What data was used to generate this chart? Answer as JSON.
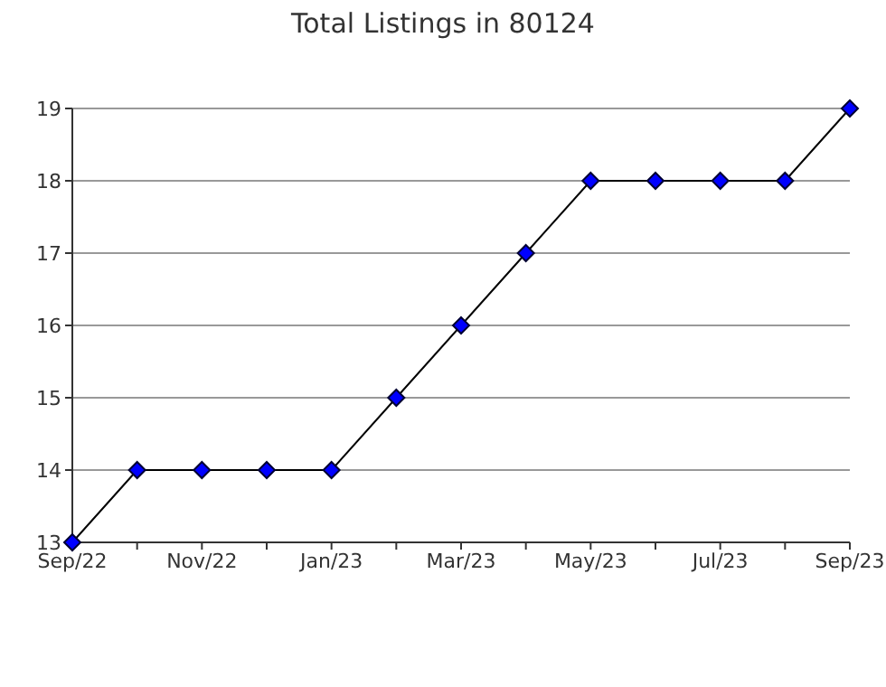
{
  "chart_data": {
    "type": "line",
    "title": "Total Listings in 80124",
    "categories": [
      "Sep/22",
      null,
      "Nov/22",
      null,
      "Jan/23",
      null,
      "Mar/23",
      null,
      "May/23",
      null,
      "Jul/23",
      null,
      "Sep/23"
    ],
    "series": [
      {
        "color": "#0000ff",
        "values": [
          13,
          14,
          14,
          14,
          14,
          15,
          16,
          17,
          18,
          18,
          18,
          18,
          19
        ]
      }
    ],
    "ylim": [
      13,
      19
    ],
    "yticks": [
      13,
      14,
      15,
      16,
      17,
      18,
      19
    ],
    "grid": "y",
    "marker": "diamond",
    "line_style": "solid"
  }
}
